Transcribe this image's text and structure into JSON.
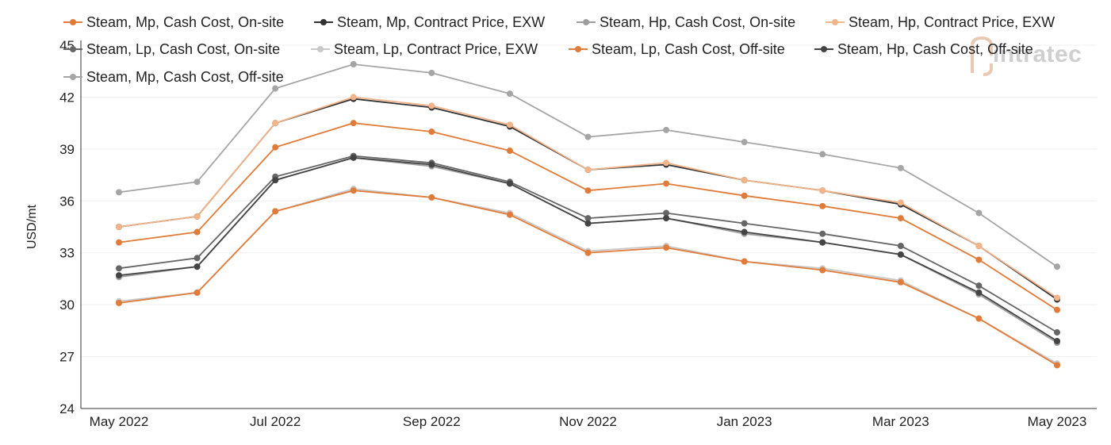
{
  "chart_data": {
    "type": "line",
    "ylabel": "USD/mt",
    "ylim": [
      24,
      45
    ],
    "yticks": [
      24,
      27,
      30,
      33,
      36,
      39,
      42,
      45
    ],
    "x": [
      "May 2022",
      "Jun 2022",
      "Jul 2022",
      "Aug 2022",
      "Sep 2022",
      "Oct 2022",
      "Nov 2022",
      "Dec 2022",
      "Jan 2023",
      "Feb 2023",
      "Mar 2023",
      "Apr 2023",
      "May 2023"
    ],
    "xtick_labels": [
      "May 2022",
      "",
      "Jul 2022",
      "",
      "Sep 2022",
      "",
      "Nov 2022",
      "",
      "Jan 2023",
      "",
      "Mar 2023",
      "",
      "May 2023"
    ],
    "grid": true,
    "legend_position": "top",
    "watermark": "intratec",
    "series": [
      {
        "name": "Steam, Mp, Cash Cost, On-site",
        "color": "#e07b39",
        "values": [
          33.6,
          34.2,
          39.1,
          40.5,
          40.0,
          38.9,
          36.6,
          37.0,
          36.3,
          35.7,
          35.0,
          32.6,
          29.7
        ]
      },
      {
        "name": "Steam, Mp, Contract Price, EXW",
        "color": "#333333",
        "values": [
          34.5,
          35.1,
          40.5,
          41.9,
          41.4,
          40.3,
          37.8,
          38.1,
          37.2,
          36.6,
          35.8,
          33.4,
          30.3
        ]
      },
      {
        "name": "Steam, Hp, Cash Cost, On-site",
        "color": "#9e9e9e",
        "values": [
          31.6,
          32.2,
          37.2,
          38.5,
          38.0,
          37.0,
          34.7,
          35.0,
          34.1,
          33.6,
          32.9,
          30.6,
          27.8
        ]
      },
      {
        "name": "Steam, Hp, Contract Price, EXW",
        "color": "#f2b48a",
        "values": [
          34.5,
          35.1,
          40.5,
          42.0,
          41.5,
          40.4,
          37.8,
          38.2,
          37.2,
          36.6,
          35.9,
          33.4,
          30.4
        ]
      },
      {
        "name": "Steam, Lp, Cash Cost, On-site",
        "color": "#666666",
        "values": [
          32.1,
          32.7,
          37.4,
          38.6,
          38.2,
          37.1,
          35.0,
          35.3,
          34.7,
          34.1,
          33.4,
          31.1,
          28.4
        ]
      },
      {
        "name": "Steam, Lp, Contract Price, EXW",
        "color": "#c8c8c8",
        "values": [
          30.2,
          30.7,
          35.4,
          36.7,
          36.2,
          35.3,
          33.1,
          33.4,
          32.5,
          32.1,
          31.4,
          29.2,
          26.6
        ]
      },
      {
        "name": "Steam, Lp, Cash Cost, Off-site",
        "color": "#e07b39",
        "values": [
          30.1,
          30.7,
          35.4,
          36.6,
          36.2,
          35.2,
          33.0,
          33.3,
          32.5,
          32.0,
          31.3,
          29.2,
          26.5
        ]
      },
      {
        "name": "Steam, Hp, Cash Cost, Off-site",
        "color": "#444444",
        "values": [
          31.7,
          32.2,
          37.2,
          38.5,
          38.1,
          37.0,
          34.7,
          35.0,
          34.2,
          33.6,
          32.9,
          30.7,
          27.9
        ]
      },
      {
        "name": "Steam, Mp, Cash Cost, Off-site",
        "color": "#a5a5a5",
        "values": [
          36.5,
          37.1,
          42.5,
          43.9,
          43.4,
          42.2,
          39.7,
          40.1,
          39.4,
          38.7,
          37.9,
          35.3,
          32.2
        ]
      }
    ]
  }
}
